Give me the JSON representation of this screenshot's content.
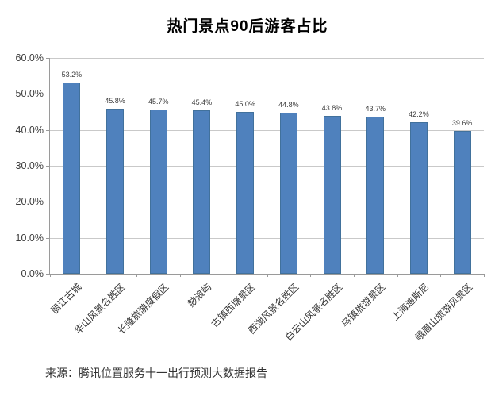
{
  "chart_data": {
    "type": "bar",
    "title": "热门景点90后游客占比",
    "categories": [
      "丽江古城",
      "华山风景名胜区",
      "长隆旅游度假区",
      "鼓浪屿",
      "古镇西塘景区",
      "西湖风景名胜区",
      "白云山风景名胜区",
      "乌镇旅游景区",
      "上海迪斯尼",
      "峨眉山旅游风景区"
    ],
    "values": [
      53.2,
      45.8,
      45.7,
      45.4,
      45.0,
      44.8,
      43.8,
      43.7,
      42.2,
      39.6
    ],
    "value_labels": [
      "53.2%",
      "45.8%",
      "45.7%",
      "45.4%",
      "45.0%",
      "44.8%",
      "43.8%",
      "43.7%",
      "42.2%",
      "39.6%"
    ],
    "y_ticks": [
      "60.0%",
      "50.0%",
      "40.0%",
      "30.0%",
      "20.0%",
      "10.0%",
      "0.0%"
    ],
    "ylim": [
      0,
      60
    ],
    "xlabel": "",
    "ylabel": "",
    "grid": true,
    "legend": "none",
    "bar_color": "#4f81bd",
    "bar_border_color": "#41719c",
    "gridline_color": "#c9c9c9",
    "axis_color": "#9a9a9a"
  },
  "source": "来源：腾讯位置服务十一出行预测大数据报告"
}
